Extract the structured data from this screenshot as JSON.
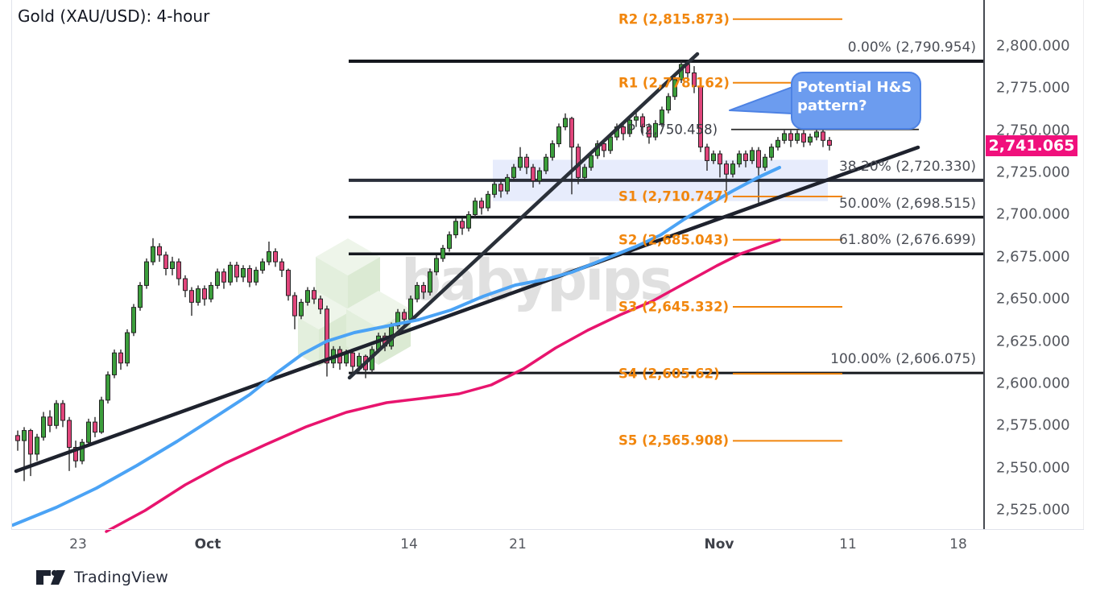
{
  "title": "Gold (XAU/USD): 4-hour",
  "watermark": {
    "text": "babypips"
  },
  "callout": {
    "line1": "Potential H&S",
    "line2": "pattern?"
  },
  "price_badge": {
    "value": "2,741.065"
  },
  "footer": {
    "logo_text": "TradingView"
  },
  "colors": {
    "up_candle": "#3c9e3c",
    "down_candle": "#e0457b",
    "candle_outline": "#232323",
    "ma_fast": "#4ba3f5",
    "ma_slow": "#e8146e",
    "pivot_orange": "#f1860d",
    "fib_line": "#15181e",
    "neck_line": "#2a2e39",
    "badge_pink": "#f0107c",
    "callout_fill": "#6c9cef",
    "callout_border": "#4d82e4",
    "zone_fill": "rgba(70,110,230,0.13)"
  },
  "chart_data": {
    "type": "candlestick",
    "title": "Gold (XAU/USD): 4-hour",
    "symbol": "XAU/USD",
    "timeframe": "4-hour",
    "last_price": 2741.065,
    "y_axis": {
      "labels": [
        "2,800.000",
        "2,775.000",
        "2,750.000",
        "2,725.000",
        "2,700.000",
        "2,675.000",
        "2,650.000",
        "2,625.000",
        "2,600.000",
        "2,575.000",
        "2,550.000",
        "2,525.000"
      ],
      "values": [
        2800,
        2775,
        2750,
        2725,
        2700,
        2675,
        2650,
        2625,
        2600,
        2575,
        2550,
        2525
      ]
    },
    "x_axis": {
      "labels": [
        "23",
        "Oct",
        "14",
        "21",
        "Nov",
        "11",
        "18"
      ],
      "bold": [
        false,
        true,
        false,
        false,
        true,
        false,
        false
      ]
    },
    "pivot_levels": [
      {
        "label": "R2 (2,815.873)",
        "value": 2815.873,
        "style": "orange"
      },
      {
        "label": "R1 (2,778.162)",
        "value": 2778.162,
        "style": "orange"
      },
      {
        "label": "P (2,750.458)",
        "value": 2750.458,
        "style": "dark"
      },
      {
        "label": "S1 (2,710.747)",
        "value": 2710.747,
        "style": "orange"
      },
      {
        "label": "S2 (2,685.043)",
        "value": 2685.043,
        "style": "orange"
      },
      {
        "label": "S3 (2,645.332)",
        "value": 2645.332,
        "style": "orange"
      },
      {
        "label": "S4 (2,605.62)",
        "value": 2605.62,
        "style": "orange"
      },
      {
        "label": "S5 (2,565.908)",
        "value": 2565.908,
        "style": "orange"
      }
    ],
    "fib_levels": [
      {
        "label": "0.00% (2,790.954)",
        "value": 2790.954
      },
      {
        "label": "38.20% (2,720.330)",
        "value": 2720.33
      },
      {
        "label": "50.00% (2,698.515)",
        "value": 2698.515
      },
      {
        "label": "61.80% (2,676.699)",
        "value": 2676.699
      },
      {
        "label": "100.00% (2,606.075)",
        "value": 2606.075
      }
    ],
    "moving_averages": [
      {
        "name": "fast-ma",
        "color": "#4ba3f5"
      },
      {
        "name": "slow-ma",
        "color": "#e8146e"
      }
    ],
    "highlight_zone": {
      "price_top": 2732.5,
      "price_bottom": 2708.0
    },
    "trendlines": [
      {
        "name": "long-term-rising-trendline"
      },
      {
        "name": "steep-rally-trendline"
      }
    ],
    "candles": [
      [
        2569,
        2572,
        2560,
        2566
      ],
      [
        2566,
        2574,
        2542,
        2572
      ],
      [
        2572,
        2573,
        2545,
        2558
      ],
      [
        2558,
        2570,
        2554,
        2568
      ],
      [
        2568,
        2583,
        2566,
        2580
      ],
      [
        2580,
        2584,
        2571,
        2575
      ],
      [
        2575,
        2590,
        2573,
        2588
      ],
      [
        2588,
        2590,
        2574,
        2578
      ],
      [
        2578,
        2580,
        2548,
        2562
      ],
      [
        2562,
        2566,
        2550,
        2554
      ],
      [
        2554,
        2567,
        2552,
        2565
      ],
      [
        2565,
        2579,
        2563,
        2577
      ],
      [
        2577,
        2580,
        2568,
        2571
      ],
      [
        2571,
        2592,
        2570,
        2590
      ],
      [
        2590,
        2607,
        2588,
        2605
      ],
      [
        2605,
        2620,
        2603,
        2618
      ],
      [
        2618,
        2620,
        2608,
        2612
      ],
      [
        2612,
        2632,
        2610,
        2630
      ],
      [
        2630,
        2647,
        2628,
        2645
      ],
      [
        2645,
        2660,
        2643,
        2658
      ],
      [
        2658,
        2674,
        2656,
        2672
      ],
      [
        2672,
        2686,
        2670,
        2681
      ],
      [
        2681,
        2683,
        2672,
        2676
      ],
      [
        2676,
        2678,
        2664,
        2668
      ],
      [
        2668,
        2675,
        2664,
        2672
      ],
      [
        2672,
        2674,
        2658,
        2662
      ],
      [
        2662,
        2664,
        2651,
        2655
      ],
      [
        2655,
        2657,
        2640,
        2648
      ],
      [
        2648,
        2658,
        2646,
        2656
      ],
      [
        2656,
        2658,
        2646,
        2650
      ],
      [
        2650,
        2660,
        2648,
        2658
      ],
      [
        2658,
        2668,
        2656,
        2666
      ],
      [
        2666,
        2668,
        2656,
        2660
      ],
      [
        2660,
        2672,
        2658,
        2670
      ],
      [
        2670,
        2672,
        2660,
        2663
      ],
      [
        2663,
        2670,
        2660,
        2668
      ],
      [
        2668,
        2670,
        2657,
        2660
      ],
      [
        2660,
        2669,
        2658,
        2667
      ],
      [
        2667,
        2674,
        2665,
        2672
      ],
      [
        2672,
        2684,
        2670,
        2678
      ],
      [
        2678,
        2680,
        2669,
        2672
      ],
      [
        2672,
        2674,
        2663,
        2667
      ],
      [
        2667,
        2668,
        2649,
        2652
      ],
      [
        2652,
        2654,
        2632,
        2640
      ],
      [
        2640,
        2650,
        2638,
        2648
      ],
      [
        2648,
        2657,
        2646,
        2655
      ],
      [
        2655,
        2657,
        2647,
        2650
      ],
      [
        2650,
        2652,
        2641,
        2644
      ],
      [
        2644,
        2646,
        2604,
        2612
      ],
      [
        2612,
        2622,
        2609,
        2620
      ],
      [
        2620,
        2622,
        2608,
        2612
      ],
      [
        2612,
        2620,
        2610,
        2618
      ],
      [
        2618,
        2619,
        2604,
        2610
      ],
      [
        2610,
        2618,
        2607,
        2616
      ],
      [
        2616,
        2617,
        2603,
        2608
      ],
      [
        2608,
        2622,
        2606,
        2620
      ],
      [
        2620,
        2630,
        2618,
        2628
      ],
      [
        2628,
        2630,
        2619,
        2622
      ],
      [
        2622,
        2636,
        2620,
        2634
      ],
      [
        2634,
        2644,
        2632,
        2642
      ],
      [
        2642,
        2644,
        2634,
        2638
      ],
      [
        2638,
        2652,
        2636,
        2650
      ],
      [
        2650,
        2660,
        2648,
        2658
      ],
      [
        2658,
        2660,
        2650,
        2654
      ],
      [
        2654,
        2668,
        2652,
        2666
      ],
      [
        2666,
        2676,
        2664,
        2674
      ],
      [
        2674,
        2682,
        2672,
        2680
      ],
      [
        2680,
        2690,
        2678,
        2688
      ],
      [
        2688,
        2698,
        2686,
        2696
      ],
      [
        2696,
        2698,
        2688,
        2692
      ],
      [
        2692,
        2702,
        2690,
        2700
      ],
      [
        2700,
        2710,
        2698,
        2708
      ],
      [
        2708,
        2710,
        2700,
        2704
      ],
      [
        2704,
        2714,
        2702,
        2712
      ],
      [
        2712,
        2720,
        2710,
        2718
      ],
      [
        2718,
        2720,
        2710,
        2714
      ],
      [
        2714,
        2724,
        2712,
        2722
      ],
      [
        2722,
        2730,
        2720,
        2728
      ],
      [
        2728,
        2740,
        2726,
        2734
      ],
      [
        2734,
        2736,
        2724,
        2728
      ],
      [
        2728,
        2730,
        2716,
        2720
      ],
      [
        2720,
        2728,
        2718,
        2726
      ],
      [
        2726,
        2736,
        2724,
        2734
      ],
      [
        2734,
        2744,
        2732,
        2742
      ],
      [
        2742,
        2754,
        2740,
        2752
      ],
      [
        2752,
        2760,
        2750,
        2757
      ],
      [
        2757,
        2758,
        2712,
        2740
      ],
      [
        2740,
        2742,
        2718,
        2722
      ],
      [
        2722,
        2730,
        2720,
        2728
      ],
      [
        2728,
        2737,
        2726,
        2735
      ],
      [
        2735,
        2744,
        2733,
        2742
      ],
      [
        2742,
        2744,
        2734,
        2738
      ],
      [
        2738,
        2748,
        2736,
        2746
      ],
      [
        2746,
        2754,
        2744,
        2752
      ],
      [
        2752,
        2754,
        2744,
        2748
      ],
      [
        2748,
        2758,
        2746,
        2756
      ],
      [
        2756,
        2762,
        2752,
        2758
      ],
      [
        2758,
        2760,
        2748,
        2752
      ],
      [
        2752,
        2754,
        2742,
        2746
      ],
      [
        2746,
        2756,
        2744,
        2754
      ],
      [
        2754,
        2764,
        2752,
        2762
      ],
      [
        2762,
        2772,
        2760,
        2770
      ],
      [
        2770,
        2782,
        2768,
        2780
      ],
      [
        2780,
        2791,
        2778,
        2789
      ],
      [
        2789,
        2791,
        2780,
        2784
      ],
      [
        2784,
        2788,
        2772,
        2776
      ],
      [
        2776,
        2778,
        2737,
        2740
      ],
      [
        2740,
        2742,
        2726,
        2732
      ],
      [
        2732,
        2738,
        2730,
        2736
      ],
      [
        2736,
        2738,
        2722,
        2730
      ],
      [
        2730,
        2732,
        2714,
        2724
      ],
      [
        2724,
        2732,
        2722,
        2730
      ],
      [
        2730,
        2738,
        2728,
        2736
      ],
      [
        2736,
        2738,
        2728,
        2732
      ],
      [
        2732,
        2740,
        2730,
        2738
      ],
      [
        2738,
        2740,
        2707,
        2728
      ],
      [
        2728,
        2736,
        2726,
        2734
      ],
      [
        2734,
        2742,
        2732,
        2740
      ],
      [
        2740,
        2746,
        2738,
        2744
      ],
      [
        2744,
        2750,
        2742,
        2748
      ],
      [
        2748,
        2750,
        2740,
        2744
      ],
      [
        2744,
        2750,
        2742,
        2748
      ],
      [
        2748,
        2750,
        2740,
        2743
      ],
      [
        2743,
        2748,
        2741,
        2746
      ],
      [
        2746,
        2755,
        2744,
        2749
      ],
      [
        2749,
        2751,
        2740,
        2744
      ],
      [
        2744,
        2746,
        2738,
        2741.1
      ]
    ]
  }
}
